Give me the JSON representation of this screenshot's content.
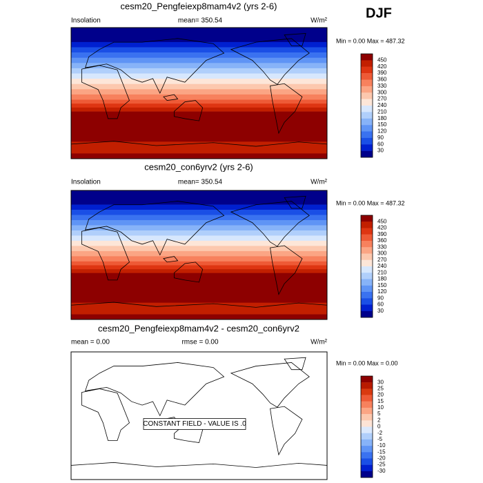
{
  "season": "DJF",
  "panels": [
    {
      "title": "cesm20_Pengfeiexp8mam4v2 (yrs 2-6)",
      "left_label": "Insolation",
      "center_label": "mean= 350.54",
      "units": "W/m²",
      "minmax": "Min =  0.00 Max = 487.32",
      "colorbar": {
        "labels": [
          450,
          420,
          390,
          360,
          330,
          300,
          270,
          240,
          210,
          180,
          150,
          120,
          90,
          60,
          30
        ],
        "colors": [
          "#8d0000",
          "#c21f00",
          "#de3512",
          "#ee5a36",
          "#f7815d",
          "#fba584",
          "#fcc8ae",
          "#fde6d8",
          "#d7e7fd",
          "#b0cffb",
          "#87b3f8",
          "#5f94f5",
          "#3a72f0",
          "#1a4fe6",
          "#0020d0",
          "#00008b"
        ]
      }
    },
    {
      "title": "cesm20_con6yrv2 (yrs 2-6)",
      "left_label": "Insolation",
      "center_label": "mean= 350.54",
      "units": "W/m²",
      "minmax": "Min =  0.00 Max = 487.32",
      "colorbar": {
        "labels": [
          450,
          420,
          390,
          360,
          330,
          300,
          270,
          240,
          210,
          180,
          150,
          120,
          90,
          60,
          30
        ],
        "colors": [
          "#8d0000",
          "#c21f00",
          "#de3512",
          "#ee5a36",
          "#f7815d",
          "#fba584",
          "#fcc8ae",
          "#fde6d8",
          "#d7e7fd",
          "#b0cffb",
          "#87b3f8",
          "#5f94f5",
          "#3a72f0",
          "#1a4fe6",
          "#0020d0",
          "#00008b"
        ]
      }
    },
    {
      "title": "cesm20_Pengfeiexp8mam4v2 - cesm20_con6yrv2",
      "left_label": "mean =  0.00",
      "center_label": "rmse =  0.00",
      "units": "W/m²",
      "minmax": "Min =  0.00 Max =  0.00",
      "annotation": "CONSTANT FIELD - VALUE IS .0",
      "colorbar": {
        "labels": [
          30,
          25,
          20,
          15,
          10,
          5,
          2,
          0,
          -2,
          -5,
          -10,
          -15,
          -20,
          -25,
          -30
        ],
        "colors": [
          "#8d0000",
          "#b81a00",
          "#d93a10",
          "#ee5a36",
          "#f7815d",
          "#fba584",
          "#fcc8ae",
          "#fde4d6",
          "#dbe9fd",
          "#b0cffb",
          "#87b3f8",
          "#5f94f5",
          "#3a72f0",
          "#1a4fe6",
          "#0020d0",
          "#00008b"
        ]
      }
    }
  ]
}
